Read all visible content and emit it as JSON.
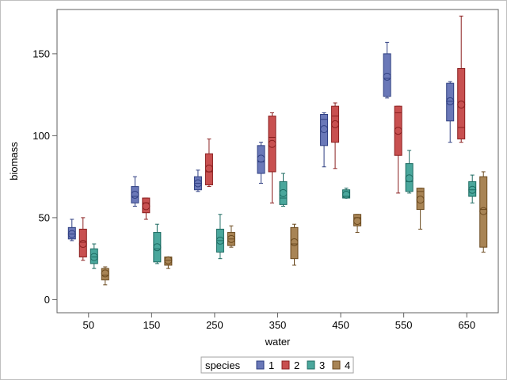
{
  "chart_data": {
    "type": "box",
    "title": "",
    "xlabel": "water",
    "ylabel": "biomass",
    "ylim": [
      -8,
      177
    ],
    "yticks": [
      0,
      50,
      100,
      150
    ],
    "categories": [
      "50",
      "150",
      "250",
      "350",
      "450",
      "550",
      "650"
    ],
    "grid": false,
    "legend_title": "species",
    "legend_position": "bottom-center",
    "series": [
      {
        "name": "1",
        "color": "#6a78b8",
        "stroke": "#2f3f82",
        "boxes": [
          {
            "whisker_low": 36,
            "q1": 37,
            "median": 40,
            "mean": 40,
            "q3": 44,
            "whisker_high": 49
          },
          {
            "whisker_low": 57,
            "q1": 59,
            "median": 63,
            "mean": 64,
            "q3": 69,
            "whisker_high": 75
          },
          {
            "whisker_low": 66,
            "q1": 67,
            "median": 71,
            "mean": 71,
            "q3": 75,
            "whisker_high": 79
          },
          {
            "whisker_low": 71,
            "q1": 77,
            "median": 84,
            "mean": 86,
            "q3": 94,
            "whisker_high": 96
          },
          {
            "whisker_low": 81,
            "q1": 94,
            "median": 110,
            "mean": 104,
            "q3": 113,
            "whisker_high": 114
          },
          {
            "whisker_low": 123,
            "q1": 124,
            "median": 135,
            "mean": 136,
            "q3": 150,
            "whisker_high": 157
          },
          {
            "whisker_low": 96,
            "q1": 109,
            "median": 121,
            "mean": 121,
            "q3": 132,
            "whisker_high": 133
          }
        ]
      },
      {
        "name": "2",
        "color": "#c85050",
        "stroke": "#8a1f1f",
        "boxes": [
          {
            "whisker_low": 24,
            "q1": 26,
            "median": 35,
            "mean": 34,
            "q3": 43,
            "whisker_high": 50
          },
          {
            "whisker_low": 49,
            "q1": 53,
            "median": 59,
            "mean": 57,
            "q3": 62,
            "whisker_high": 62
          },
          {
            "whisker_low": 69,
            "q1": 70,
            "median": 78,
            "mean": 80,
            "q3": 89,
            "whisker_high": 98
          },
          {
            "whisker_low": 59,
            "q1": 78,
            "median": 99,
            "mean": 95,
            "q3": 112,
            "whisker_high": 114
          },
          {
            "whisker_low": 80,
            "q1": 96,
            "median": 112,
            "mean": 107,
            "q3": 118,
            "whisker_high": 120
          },
          {
            "whisker_low": 65,
            "q1": 88,
            "median": 114,
            "mean": 103,
            "q3": 118,
            "whisker_high": 118
          },
          {
            "whisker_low": 96,
            "q1": 98,
            "median": 105,
            "mean": 119,
            "q3": 141,
            "whisker_high": 173
          }
        ]
      },
      {
        "name": "3",
        "color": "#4aa79c",
        "stroke": "#1d6b62",
        "boxes": [
          {
            "whisker_low": 19,
            "q1": 22,
            "median": 26,
            "mean": 26,
            "q3": 31,
            "whisker_high": 34
          },
          {
            "whisker_low": 22,
            "q1": 23,
            "median": 31,
            "mean": 32,
            "q3": 41,
            "whisker_high": 46
          },
          {
            "whisker_low": 25,
            "q1": 29,
            "median": 36,
            "mean": 36,
            "q3": 43,
            "whisker_high": 52
          },
          {
            "whisker_low": 57,
            "q1": 58,
            "median": 62,
            "mean": 65,
            "q3": 72,
            "whisker_high": 77
          },
          {
            "whisker_low": 62,
            "q1": 62,
            "median": 63,
            "mean": 64,
            "q3": 67,
            "whisker_high": 68
          },
          {
            "whisker_low": 65,
            "q1": 66,
            "median": 72,
            "mean": 74,
            "q3": 83,
            "whisker_high": 91
          },
          {
            "whisker_low": 59,
            "q1": 63,
            "median": 67,
            "mean": 67,
            "q3": 72,
            "whisker_high": 76
          }
        ]
      },
      {
        "name": "4",
        "color": "#a88455",
        "stroke": "#6b4a1f",
        "boxes": [
          {
            "whisker_low": 9,
            "q1": 12,
            "median": 15,
            "mean": 16,
            "q3": 19,
            "whisker_high": 20
          },
          {
            "whisker_low": 19,
            "q1": 21,
            "median": 24,
            "mean": 24,
            "q3": 26,
            "whisker_high": 26
          },
          {
            "whisker_low": 32,
            "q1": 33,
            "median": 37,
            "mean": 37,
            "q3": 41,
            "whisker_high": 45
          },
          {
            "whisker_low": 21,
            "q1": 25,
            "median": 34,
            "mean": 35,
            "q3": 44,
            "whisker_high": 46
          },
          {
            "whisker_low": 41,
            "q1": 45,
            "median": 50,
            "mean": 48,
            "q3": 52,
            "whisker_high": 52
          },
          {
            "whisker_low": 43,
            "q1": 55,
            "median": 66,
            "mean": 61,
            "q3": 68,
            "whisker_high": 68
          },
          {
            "whisker_low": 29,
            "q1": 32,
            "median": 55,
            "mean": 54,
            "q3": 75,
            "whisker_high": 78
          }
        ]
      }
    ]
  }
}
